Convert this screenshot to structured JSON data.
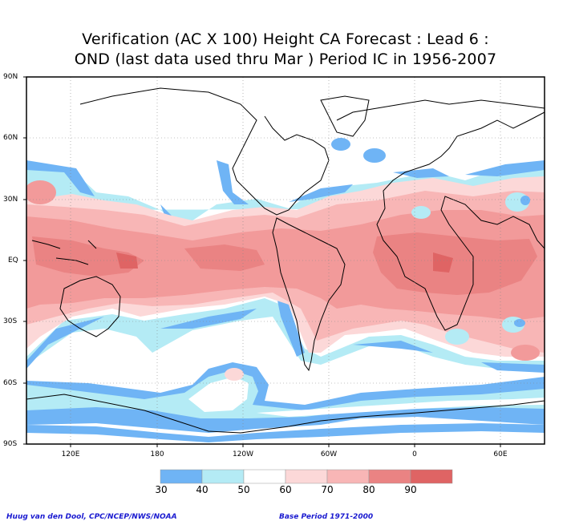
{
  "title": {
    "line1": "Verification (AC X 100) Height CA Forecast : Lead 6 :",
    "line2": "OND (last data used thru Mar ) Period IC in 1956-2007"
  },
  "lat_labels": [
    "90N",
    "60N",
    "30N",
    "EQ",
    "30S",
    "60S",
    "90S"
  ],
  "lon_labels": [
    "120E",
    "180",
    "120W",
    "60W",
    "0",
    "60E"
  ],
  "colorbar": {
    "labels": [
      "30",
      "40",
      "50",
      "60",
      "70",
      "80",
      "90"
    ],
    "colors": [
      "#6fb4f5",
      "#b4ebf5",
      "#ffffff",
      "#fcd8d8",
      "#f8b6b6",
      "#f29a9a",
      "#ea8383",
      "#df6464"
    ]
  },
  "credit_left": "Huug van den Dool, CPC/NCEP/NWS/NOAA",
  "credit_right": "Base Period 1971-2000"
}
